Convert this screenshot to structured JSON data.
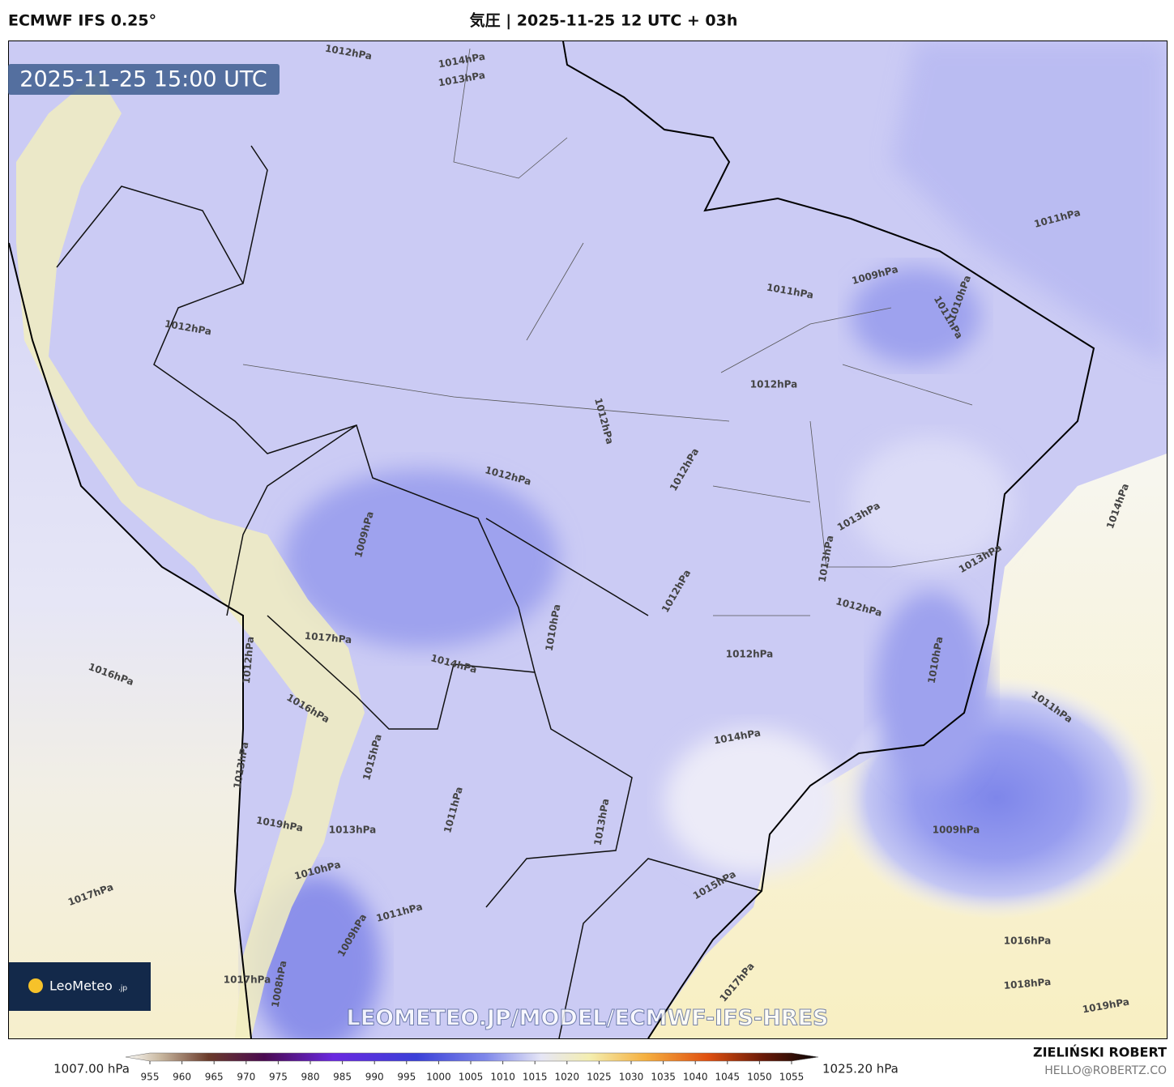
{
  "header": {
    "model": "ECMWF IFS 0.25°",
    "title": "気圧 | 2025-11-25 12 UTC + 03h"
  },
  "map": {
    "valid_time": "2025-11-25 15:00 UTC",
    "watermark": "LEOMETEO.JP/MODEL/ECMWF-IFS-HRES",
    "logo": {
      "name": "LeoMeteo",
      "suffix": ".jp"
    },
    "contour_labels": [
      "1012hPa",
      "1014hPa",
      "1013hPa",
      "1011hPa",
      "1009hPa",
      "1011hPa",
      "1011hPa",
      "1010hPa",
      "1012hPa",
      "1012hPa",
      "1012hPa",
      "1012hPa",
      "1012hPa",
      "1013hPa",
      "1014hPa",
      "1009hPa",
      "1013hPa",
      "1013hPa",
      "1012hPa",
      "1012hPa",
      "1010hPa",
      "1017hPa",
      "1016hPa",
      "1014hPa",
      "1012hPa",
      "1012hPa",
      "1010hPa",
      "1011hPa",
      "1014hPa",
      "1016hPa",
      "1013hPa",
      "1015hPa",
      "1011hPa",
      "1013hPa",
      "1013hPa",
      "1019hPa",
      "1009hPa",
      "1010hPa",
      "1017hPa",
      "1015hPa",
      "1011hPa",
      "1009hPa",
      "1016hPa",
      "1017hPa",
      "1017hPa",
      "1018hPa",
      "1019hPa",
      "1008hPa"
    ]
  },
  "colorbar": {
    "min_label": "1007.00 hPa",
    "max_label": "1025.20 hPa",
    "ticks": [
      955,
      960,
      965,
      970,
      975,
      980,
      985,
      990,
      995,
      1000,
      1005,
      1010,
      1015,
      1020,
      1025,
      1030,
      1035,
      1040,
      1045,
      1050,
      1055
    ]
  },
  "footer": {
    "author": "ZIELIŃSKI ROBERT",
    "email": "HELLO@ROBERTZ.CO"
  }
}
